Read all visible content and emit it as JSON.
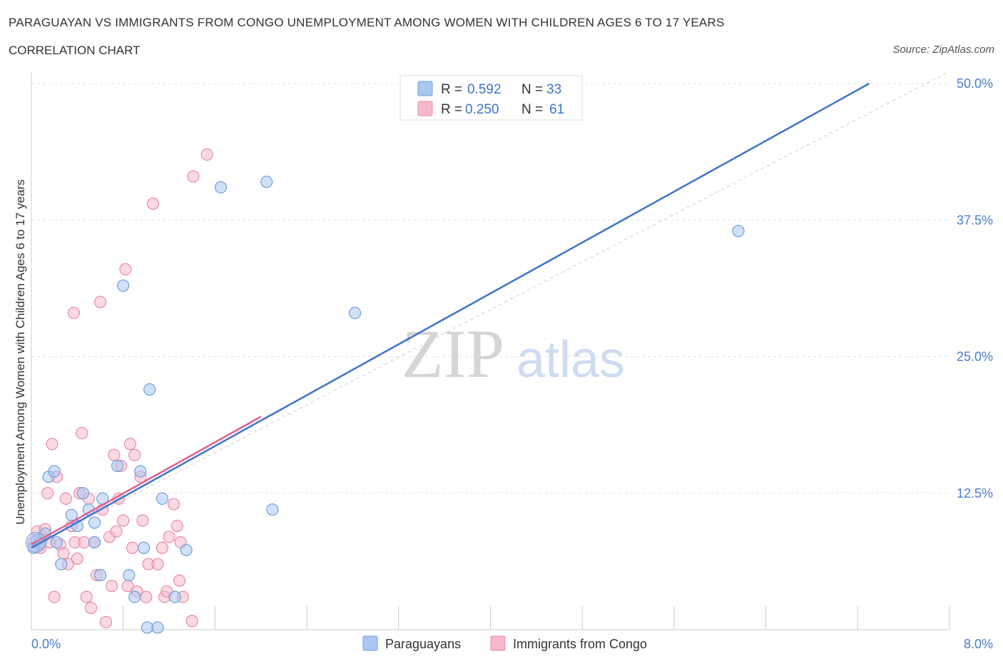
{
  "title": "PARAGUAYAN VS IMMIGRANTS FROM CONGO UNEMPLOYMENT AMONG WOMEN WITH CHILDREN AGES 6 TO 17 YEARS",
  "subtitle": "CORRELATION CHART",
  "source": "Source: ZipAtlas.com",
  "watermark": {
    "zip": "ZIP",
    "atlas": "atlas"
  },
  "legend_box": {
    "rows": [
      {
        "r_label": "R =",
        "r_value": "0.592",
        "n_label": "N =",
        "n_value": "33"
      },
      {
        "r_label": "R =",
        "r_value": "0.250",
        "n_label": "N =",
        "n_value": "61"
      }
    ]
  },
  "chart_data": {
    "type": "scatter",
    "title": "PARAGUAYAN VS IMMIGRANTS FROM CONGO UNEMPLOYMENT AMONG WOMEN WITH CHILDREN AGES 6 TO 17 YEARS",
    "xlabel": "",
    "ylabel": "Unemployment Among Women with Children Ages 6 to 17 years",
    "xlim": [
      0,
      8
    ],
    "ylim": [
      0,
      50
    ],
    "x_tick_labels": [
      "0.0%",
      "8.0%"
    ],
    "y_ticks": [
      12.5,
      25,
      37.5,
      50
    ],
    "y_tick_labels": [
      "12.5%",
      "25.0%",
      "37.5%",
      "50.0%"
    ],
    "legend_position": "bottom",
    "colors": {
      "paraguayans_fill": "#a9c8f2",
      "paraguayans_stroke": "#6f9fdc",
      "paraguayans_line": "#3d74cc",
      "congo_fill": "#f6b9cb",
      "congo_stroke": "#e98aa8",
      "congo_line": "#e06090",
      "tick_label": "#4a7bd0"
    },
    "series": [
      {
        "name": "Paraguayans",
        "r": 0.592,
        "n": 33,
        "trend": {
          "x0": 0.0,
          "y0": 7.5,
          "x1": 7.3,
          "y1": 50.0
        },
        "points": [
          [
            0.02,
            7.5
          ],
          [
            0.05,
            8.2
          ],
          [
            0.08,
            8.0
          ],
          [
            0.12,
            8.8
          ],
          [
            0.15,
            14.0
          ],
          [
            0.22,
            8.0
          ],
          [
            0.26,
            6.0
          ],
          [
            0.35,
            10.5
          ],
          [
            0.4,
            9.5
          ],
          [
            0.45,
            12.5
          ],
          [
            0.5,
            11.0
          ],
          [
            0.55,
            8.0
          ],
          [
            0.6,
            5.0
          ],
          [
            0.62,
            12.0
          ],
          [
            0.55,
            9.8
          ],
          [
            0.75,
            15.0
          ],
          [
            0.8,
            31.5
          ],
          [
            0.85,
            5.0
          ],
          [
            0.9,
            3.0
          ],
          [
            0.95,
            14.5
          ],
          [
            0.98,
            7.5
          ],
          [
            1.03,
            22.0
          ],
          [
            1.01,
            0.2
          ],
          [
            1.1,
            0.2
          ],
          [
            1.14,
            12.0
          ],
          [
            1.25,
            3.0
          ],
          [
            1.35,
            7.3
          ],
          [
            1.65,
            40.5
          ],
          [
            2.05,
            41.0
          ],
          [
            2.1,
            11.0
          ],
          [
            2.82,
            29.0
          ],
          [
            6.16,
            36.5
          ],
          [
            0.2,
            14.5
          ]
        ]
      },
      {
        "name": "Immigrants from Congo",
        "r": 0.25,
        "n": 61,
        "trend": {
          "x0": 0.0,
          "y0": 7.8,
          "x1": 2.0,
          "y1": 19.5
        },
        "points": [
          [
            0.02,
            8.0
          ],
          [
            0.05,
            9.0
          ],
          [
            0.08,
            7.5
          ],
          [
            0.1,
            8.5
          ],
          [
            0.12,
            9.2
          ],
          [
            0.14,
            12.5
          ],
          [
            0.16,
            8.0
          ],
          [
            0.18,
            17.0
          ],
          [
            0.2,
            3.0
          ],
          [
            0.22,
            14.0
          ],
          [
            0.25,
            7.8
          ],
          [
            0.28,
            7.0
          ],
          [
            0.3,
            12.0
          ],
          [
            0.32,
            6.0
          ],
          [
            0.35,
            9.5
          ],
          [
            0.37,
            29.0
          ],
          [
            0.38,
            8.0
          ],
          [
            0.4,
            6.5
          ],
          [
            0.42,
            12.5
          ],
          [
            0.44,
            18.0
          ],
          [
            0.46,
            8.0
          ],
          [
            0.48,
            3.0
          ],
          [
            0.5,
            12.0
          ],
          [
            0.52,
            2.0
          ],
          [
            0.55,
            8.0
          ],
          [
            0.57,
            5.0
          ],
          [
            0.6,
            30.0
          ],
          [
            0.62,
            11.0
          ],
          [
            0.65,
            0.7
          ],
          [
            0.68,
            8.5
          ],
          [
            0.7,
            4.0
          ],
          [
            0.72,
            16.0
          ],
          [
            0.74,
            9.0
          ],
          [
            0.76,
            12.0
          ],
          [
            0.78,
            15.0
          ],
          [
            0.8,
            10.0
          ],
          [
            0.82,
            33.0
          ],
          [
            0.84,
            4.0
          ],
          [
            0.86,
            17.0
          ],
          [
            0.88,
            7.5
          ],
          [
            0.9,
            16.0
          ],
          [
            0.92,
            3.5
          ],
          [
            0.95,
            14.0
          ],
          [
            0.97,
            10.0
          ],
          [
            1.0,
            3.0
          ],
          [
            1.02,
            6.0
          ],
          [
            1.06,
            39.0
          ],
          [
            1.1,
            6.0
          ],
          [
            1.14,
            7.5
          ],
          [
            1.16,
            3.0
          ],
          [
            1.18,
            3.5
          ],
          [
            1.2,
            8.5
          ],
          [
            1.24,
            11.5
          ],
          [
            1.27,
            9.5
          ],
          [
            1.29,
            4.5
          ],
          [
            1.3,
            8.0
          ],
          [
            1.32,
            3.0
          ],
          [
            1.4,
            0.8
          ],
          [
            1.41,
            41.5
          ],
          [
            1.53,
            43.5
          ],
          [
            0.06,
            7.8
          ]
        ]
      }
    ]
  },
  "bottom_legend": {
    "items": [
      "Paraguayans",
      "Immigrants from Congo"
    ]
  }
}
